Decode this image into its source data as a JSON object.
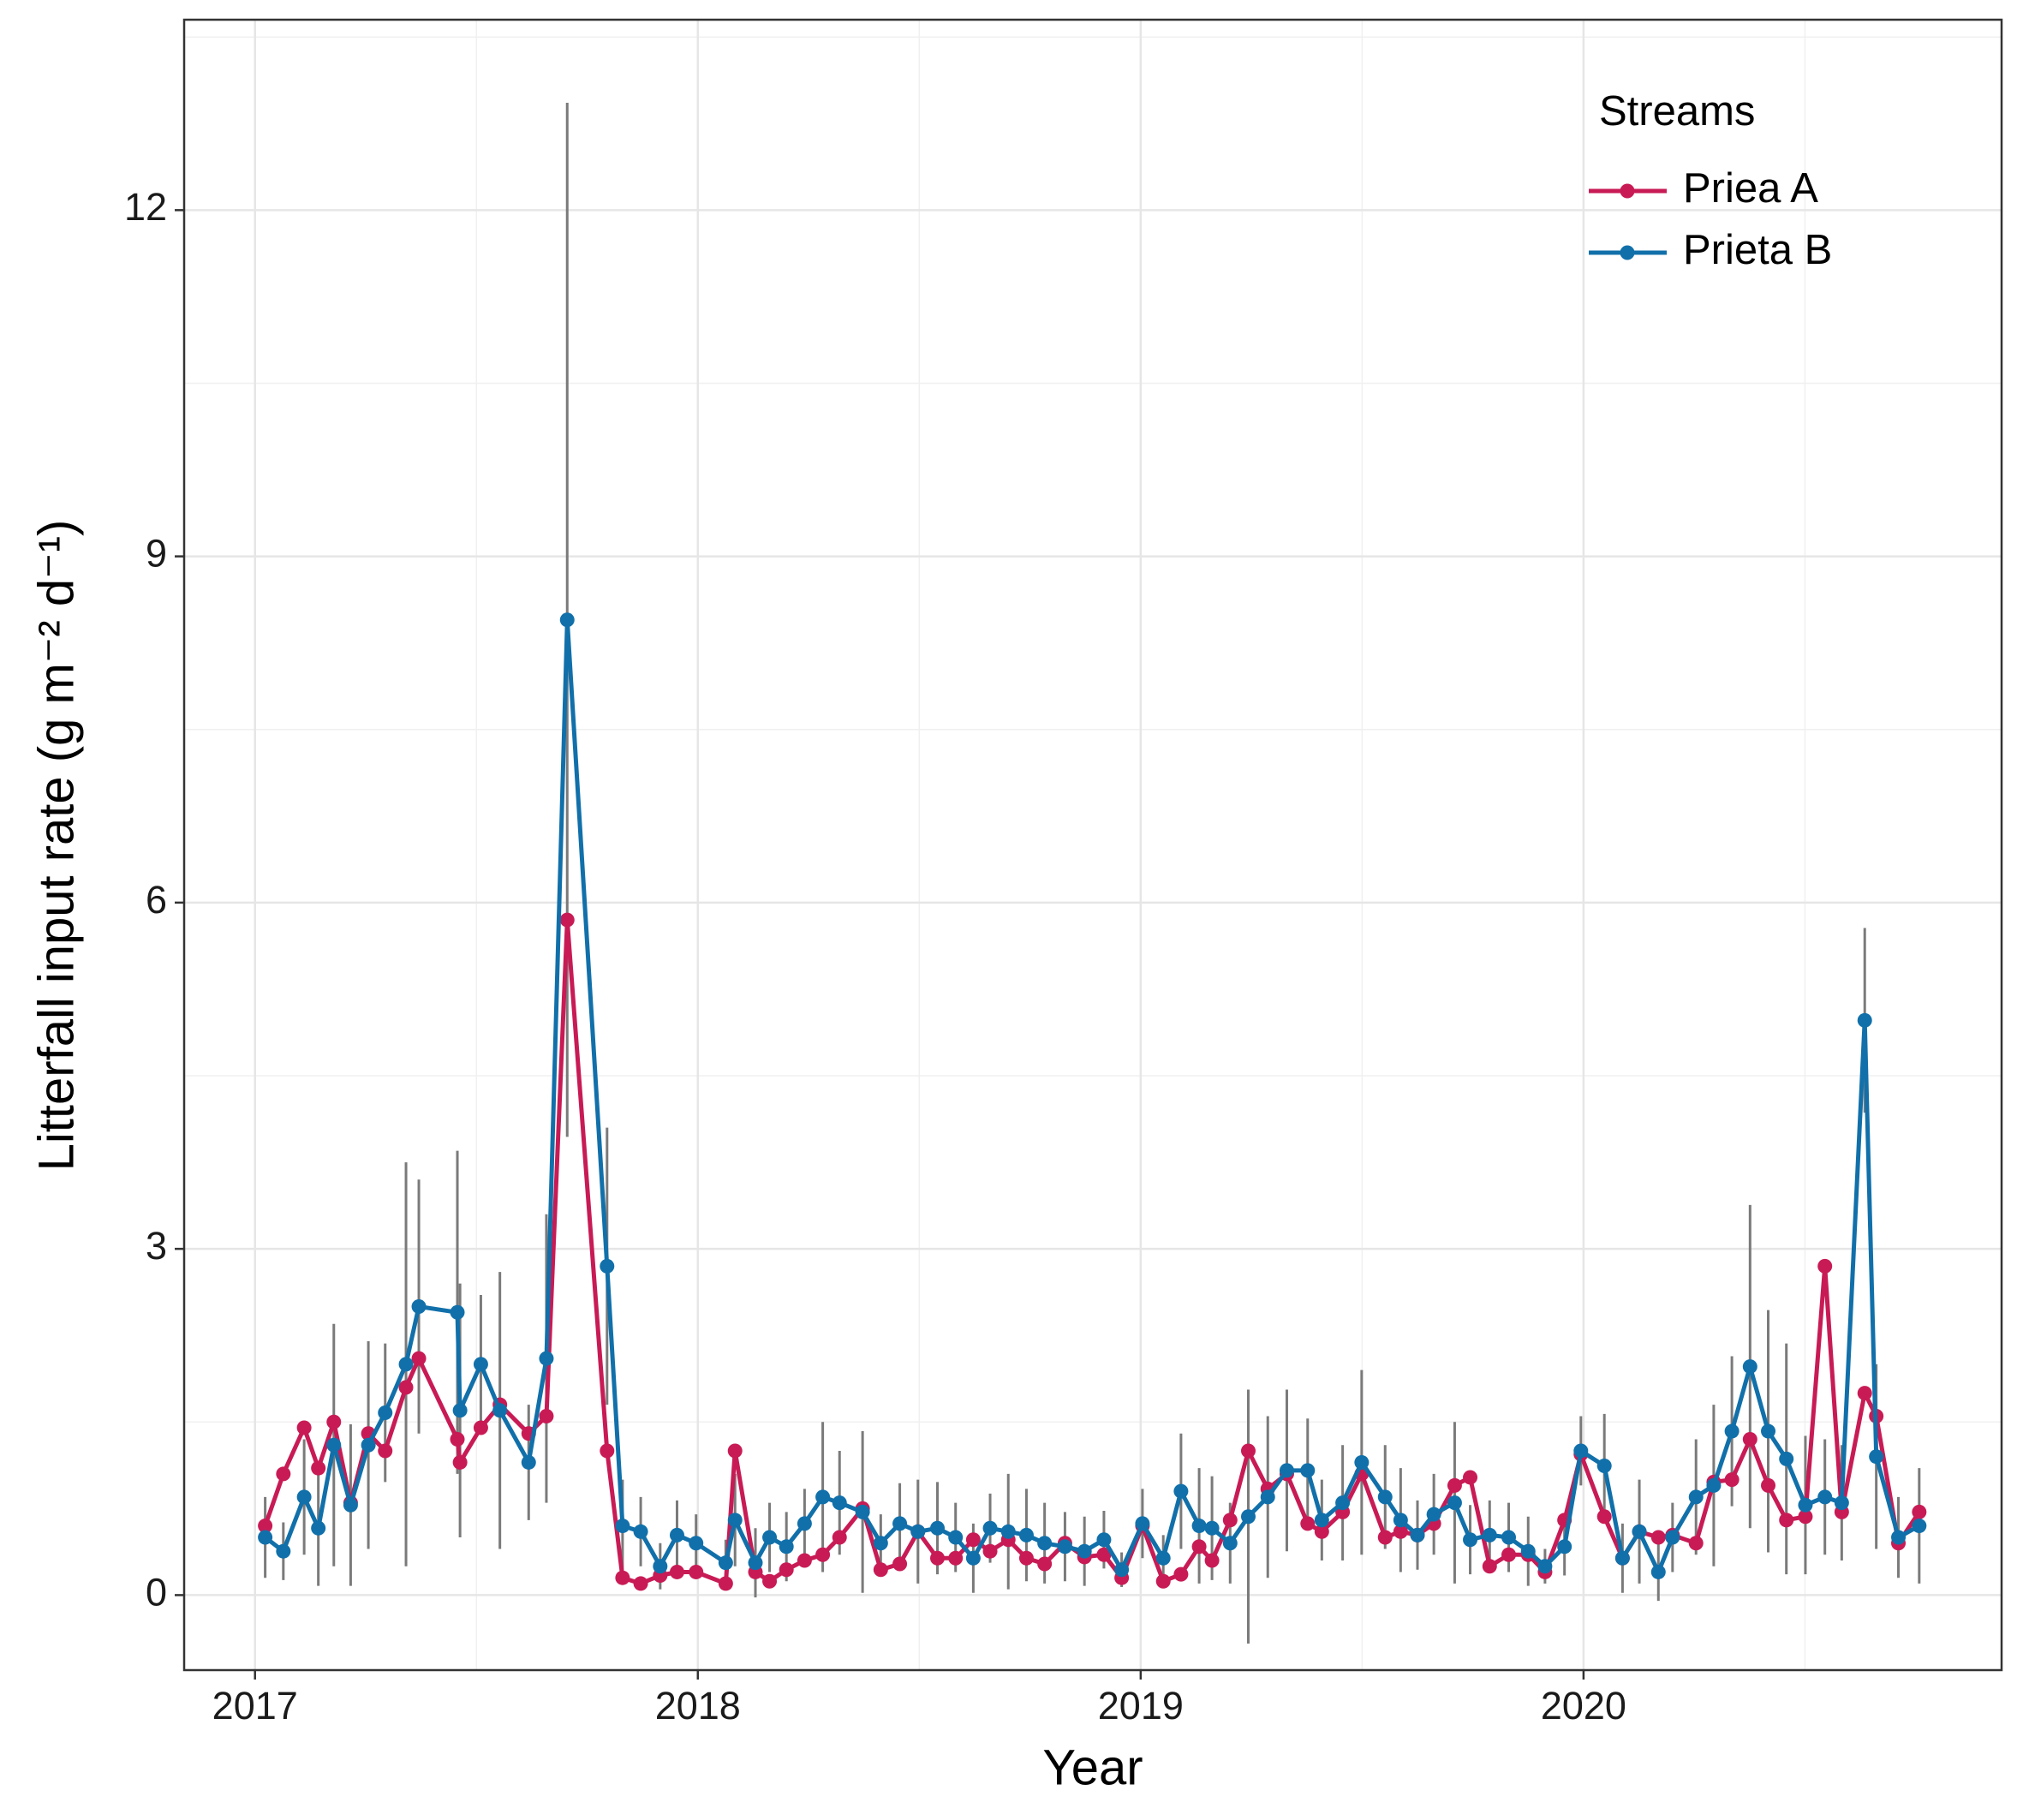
{
  "chart_data": {
    "type": "line",
    "xlabel": "Year",
    "ylabel": "Litterfall input rate (g m⁻² d⁻¹)",
    "legend_title": "Streams",
    "legend_position": "top-right",
    "grid": true,
    "xlim": [
      2016.84,
      2020.944
    ],
    "xticks": [
      2017,
      2018,
      2019,
      2020
    ],
    "ylim": [
      -0.65,
      13.65
    ],
    "yticks": [
      0,
      3,
      6,
      9,
      12
    ],
    "error_color": "#7a7a7a",
    "x": [
      2017.023,
      2017.064,
      2017.111,
      2017.143,
      2017.178,
      2017.216,
      2017.256,
      2017.294,
      2017.341,
      2017.37,
      2017.457,
      2017.463,
      2017.51,
      2017.553,
      2017.618,
      2017.658,
      2017.705,
      2017.795,
      2017.83,
      2017.871,
      2017.915,
      2017.953,
      2017.996,
      2018.063,
      2018.084,
      2018.13,
      2018.162,
      2018.2,
      2018.241,
      2018.282,
      2018.32,
      2018.372,
      2018.413,
      2018.456,
      2018.497,
      2018.541,
      2018.582,
      2018.622,
      2018.66,
      2018.701,
      2018.742,
      2018.783,
      2018.829,
      2018.873,
      2018.917,
      2018.957,
      2019.004,
      2019.051,
      2019.091,
      2019.132,
      2019.161,
      2019.202,
      2019.243,
      2019.287,
      2019.33,
      2019.377,
      2019.409,
      2019.456,
      2019.499,
      2019.552,
      2019.587,
      2019.625,
      2019.662,
      2019.709,
      2019.744,
      2019.788,
      2019.831,
      2019.875,
      2019.913,
      2019.957,
      2019.994,
      2020.047,
      2020.088,
      2020.126,
      2020.169,
      2020.201,
      2020.254,
      2020.294,
      2020.335,
      2020.376,
      2020.417,
      2020.458,
      2020.501,
      2020.545,
      2020.583,
      2020.635,
      2020.661,
      2020.711,
      2020.758
    ],
    "series": [
      {
        "name": "Priea A",
        "color": "#c81b55",
        "values": [
          0.6,
          1.05,
          1.45,
          1.1,
          1.5,
          0.8,
          1.4,
          1.25,
          1.8,
          2.05,
          1.35,
          1.15,
          1.45,
          1.65,
          1.4,
          1.55,
          5.85,
          1.25,
          0.15,
          0.1,
          0.17,
          0.2,
          0.2,
          0.1,
          1.25,
          0.2,
          0.12,
          0.22,
          0.3,
          0.35,
          0.5,
          0.75,
          0.22,
          0.27,
          0.55,
          0.32,
          0.32,
          0.48,
          0.38,
          0.48,
          0.32,
          0.27,
          0.45,
          0.33,
          0.35,
          0.15,
          0.6,
          0.12,
          0.18,
          0.42,
          0.3,
          0.65,
          1.25,
          0.92,
          1.05,
          0.62,
          0.55,
          0.72,
          1.05,
          0.5,
          0.55,
          0.52,
          0.62,
          0.95,
          1.02,
          0.25,
          0.35,
          0.35,
          0.2,
          0.65,
          1.22,
          0.68,
          0.32,
          0.55,
          0.5,
          0.52,
          0.45,
          0.98,
          1.0,
          1.35,
          0.95,
          0.65,
          0.68,
          2.85,
          0.72,
          1.75,
          1.55,
          0.45,
          0.72
        ]
      },
      {
        "name": "Prieta B",
        "color": "#1170aa",
        "values": [
          0.5,
          0.38,
          0.85,
          0.58,
          1.3,
          0.78,
          1.3,
          1.58,
          2.0,
          2.5,
          2.45,
          1.6,
          2.0,
          1.6,
          1.15,
          2.05,
          8.45,
          2.85,
          0.6,
          0.55,
          0.25,
          0.52,
          0.45,
          0.28,
          0.65,
          0.28,
          0.5,
          0.42,
          0.62,
          0.85,
          0.8,
          0.72,
          0.45,
          0.62,
          0.55,
          0.58,
          0.5,
          0.32,
          0.58,
          0.55,
          0.52,
          0.45,
          0.42,
          0.38,
          0.48,
          0.22,
          0.62,
          0.32,
          0.9,
          0.6,
          0.58,
          0.45,
          0.68,
          0.85,
          1.08,
          1.08,
          0.65,
          0.8,
          1.15,
          0.85,
          0.65,
          0.52,
          0.7,
          0.8,
          0.48,
          0.52,
          0.5,
          0.38,
          0.25,
          0.42,
          1.25,
          1.12,
          0.32,
          0.55,
          0.2,
          0.5,
          0.85,
          0.95,
          1.42,
          1.98,
          1.42,
          1.18,
          0.78,
          0.85,
          0.8,
          4.98,
          1.2,
          0.5,
          0.6
        ],
        "errors": [
          0.35,
          0.25,
          0.5,
          0.5,
          1.05,
          0.7,
          0.9,
          0.6,
          1.75,
          1.1,
          1.4,
          1.1,
          0.6,
          1.2,
          0.5,
          1.25,
          4.48,
          1.2,
          0.4,
          0.3,
          0.2,
          0.3,
          0.25,
          0.2,
          0.4,
          0.3,
          0.3,
          0.3,
          0.3,
          0.65,
          0.45,
          0.7,
          0.25,
          0.35,
          0.45,
          0.4,
          0.3,
          0.3,
          0.3,
          0.5,
          0.4,
          0.35,
          0.3,
          0.3,
          0.25,
          0.15,
          0.3,
          0.2,
          0.5,
          0.5,
          0.45,
          0.35,
          1.1,
          0.7,
          0.7,
          0.45,
          0.35,
          0.5,
          0.8,
          0.45,
          0.45,
          0.3,
          0.35,
          0.7,
          0.3,
          0.3,
          0.3,
          0.3,
          0.15,
          0.25,
          0.3,
          0.45,
          0.3,
          0.45,
          0.25,
          0.3,
          0.5,
          0.7,
          0.65,
          1.4,
          1.05,
          1.0,
          0.6,
          0.5,
          0.5,
          0.8,
          0.8,
          0.35,
          0.5
        ]
      }
    ]
  }
}
